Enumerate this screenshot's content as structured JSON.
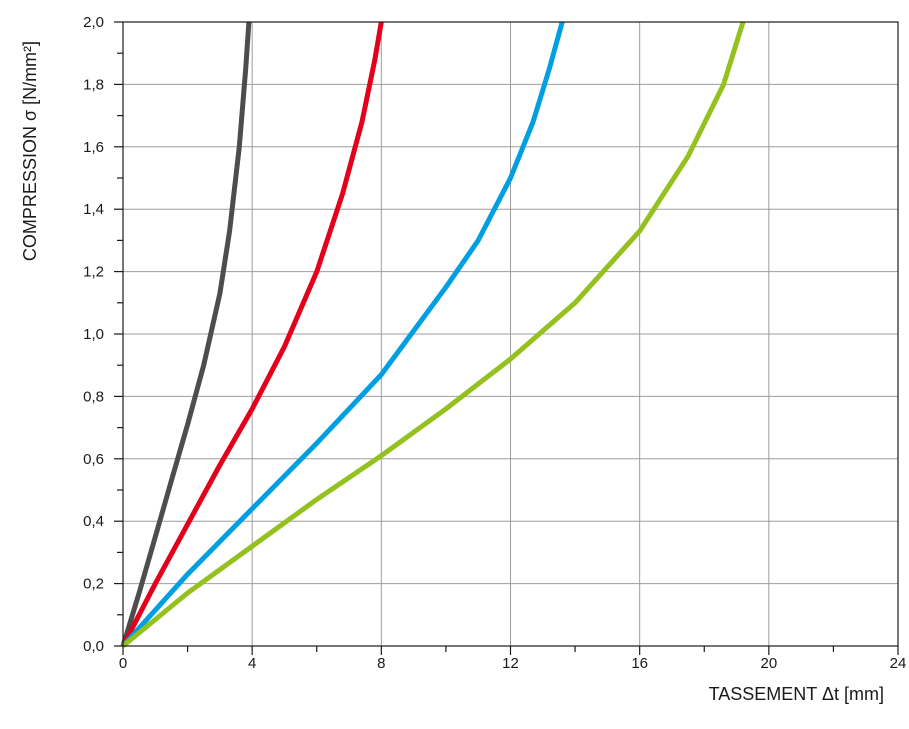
{
  "chart_data": {
    "type": "line",
    "title": "",
    "xlabel": "TASSEMENT Δt [mm]",
    "ylabel": "COMPRESSION σ [N/mm²]",
    "xlim": [
      0,
      24
    ],
    "ylim": [
      0,
      2.0
    ],
    "x_ticks": [
      0,
      4,
      8,
      12,
      16,
      20,
      24
    ],
    "x_tick_labels": [
      "0",
      "4",
      "8",
      "12",
      "16",
      "20",
      "24"
    ],
    "x_minor_step": 2,
    "y_ticks": [
      0,
      0.2,
      0.4,
      0.6,
      0.8,
      1.0,
      1.2,
      1.4,
      1.6,
      1.8,
      2.0
    ],
    "y_tick_labels": [
      "0,0",
      "0,2",
      "0,4",
      "0,6",
      "0,8",
      "1,0",
      "1,2",
      "1,4",
      "1,6",
      "1,8",
      "2,0"
    ],
    "y_minor_step": 0.1,
    "grid": true,
    "legend": "none",
    "series": [
      {
        "color": "#4d4d4d",
        "x": [
          0,
          0.5,
          1.0,
          1.5,
          2.0,
          2.5,
          3.0,
          3.3,
          3.6,
          3.8,
          3.9
        ],
        "y": [
          0,
          0.17,
          0.35,
          0.53,
          0.71,
          0.9,
          1.13,
          1.33,
          1.6,
          1.85,
          2.0
        ]
      },
      {
        "color": "#e2001a",
        "x": [
          0,
          1.0,
          2.0,
          3.0,
          4.0,
          5.0,
          6.0,
          6.8,
          7.4,
          7.8,
          8.0
        ],
        "y": [
          0,
          0.2,
          0.39,
          0.58,
          0.76,
          0.96,
          1.2,
          1.45,
          1.68,
          1.88,
          2.0
        ]
      },
      {
        "color": "#009fe3",
        "x": [
          0,
          2.0,
          4.0,
          6.0,
          8.0,
          10.0,
          11.0,
          12.0,
          12.7,
          13.2,
          13.6
        ],
        "y": [
          0,
          0.23,
          0.44,
          0.65,
          0.87,
          1.15,
          1.3,
          1.5,
          1.68,
          1.85,
          2.0
        ]
      },
      {
        "color": "#95c11f",
        "x": [
          0,
          2.0,
          4.0,
          6.0,
          8.0,
          10.0,
          12.0,
          14.0,
          16.0,
          17.5,
          18.6,
          19.2
        ],
        "y": [
          0,
          0.17,
          0.32,
          0.47,
          0.61,
          0.76,
          0.92,
          1.1,
          1.33,
          1.57,
          1.8,
          2.0
        ]
      }
    ]
  }
}
